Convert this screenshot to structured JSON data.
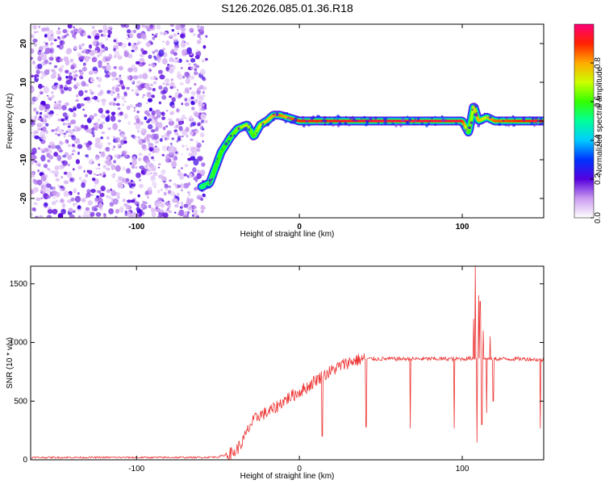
{
  "title": "S126.2026.085.01.36.R18",
  "chart_data": [
    {
      "type": "heatmap",
      "xlabel": "Height of straight line (km)",
      "ylabel": "Frequency (Hz)",
      "xlim": [
        -165,
        150
      ],
      "ylim": [
        -25,
        25
      ],
      "x_ticks": [
        -100,
        0,
        100
      ],
      "y_ticks": [
        -20,
        -10,
        0,
        10,
        20
      ],
      "colorbar": {
        "label": "Normalized spectral amplitude",
        "range": [
          0.0,
          1.0
        ],
        "ticks": [
          0.0,
          0.2,
          0.4,
          0.6,
          0.8
        ],
        "tick_labels": [
          "0.0",
          "0.2",
          "0.4",
          "0.6",
          "0.8"
        ]
      },
      "noise_region_x": [
        -165,
        -57
      ],
      "ridge": {
        "x": [
          -60,
          -55,
          -48,
          -42,
          -38,
          -32,
          -28,
          -24,
          -20,
          -16,
          -12,
          -8,
          -4,
          0,
          40,
          100,
          104,
          107,
          110,
          115,
          120,
          150
        ],
        "y": [
          -17,
          -16,
          -8,
          -4,
          -2,
          -1,
          -4,
          -1,
          0,
          1.5,
          1.5,
          1,
          0.5,
          0,
          0,
          0,
          -3,
          4,
          0,
          1,
          0,
          0
        ],
        "amplitude": [
          0.5,
          0.55,
          0.6,
          0.6,
          0.65,
          0.7,
          0.6,
          0.7,
          0.75,
          0.8,
          0.85,
          0.8,
          0.85,
          0.9,
          0.95,
          0.95,
          0.6,
          0.7,
          0.8,
          0.7,
          0.85,
          0.95
        ]
      }
    },
    {
      "type": "line",
      "xlabel": "Height of straight line (km)",
      "ylabel": "SNR (10 * v/v)",
      "xlim": [
        -165,
        150
      ],
      "ylim": [
        0,
        1650
      ],
      "x_ticks": [
        -100,
        0,
        100
      ],
      "y_ticks": [
        0,
        500,
        1000,
        1500
      ],
      "color": "#ee3333",
      "series": [
        {
          "x": [
            -165,
            -100,
            -60,
            -50,
            -40,
            -35,
            -30,
            -25,
            -20,
            -15,
            -10,
            -5,
            0,
            5,
            10,
            15,
            20,
            25,
            30,
            35,
            40,
            50,
            60,
            70,
            80,
            90,
            100,
            105,
            110,
            115,
            120,
            130,
            140,
            150
          ],
          "values": [
            20,
            20,
            20,
            25,
            60,
            150,
            300,
            380,
            400,
            440,
            500,
            540,
            580,
            620,
            680,
            720,
            760,
            800,
            830,
            850,
            860,
            860,
            860,
            860,
            860,
            860,
            860,
            865,
            870,
            860,
            860,
            860,
            860,
            850
          ]
        }
      ],
      "dips": [
        {
          "x": 14,
          "value": 200
        },
        {
          "x": 41,
          "value": 280
        },
        {
          "x": 68,
          "value": 270
        },
        {
          "x": 95,
          "value": 270
        },
        {
          "x": 148,
          "value": 270
        }
      ],
      "spikes": [
        {
          "x": 107,
          "value": 1200
        },
        {
          "x": 108,
          "value": 1650
        },
        {
          "x": 109,
          "value": 150
        },
        {
          "x": 110,
          "value": 1400
        },
        {
          "x": 111,
          "value": 1350
        },
        {
          "x": 112,
          "value": 300
        },
        {
          "x": 113,
          "value": 1100
        },
        {
          "x": 115,
          "value": 400
        },
        {
          "x": 117,
          "value": 1050
        },
        {
          "x": 119,
          "value": 500
        }
      ]
    }
  ]
}
